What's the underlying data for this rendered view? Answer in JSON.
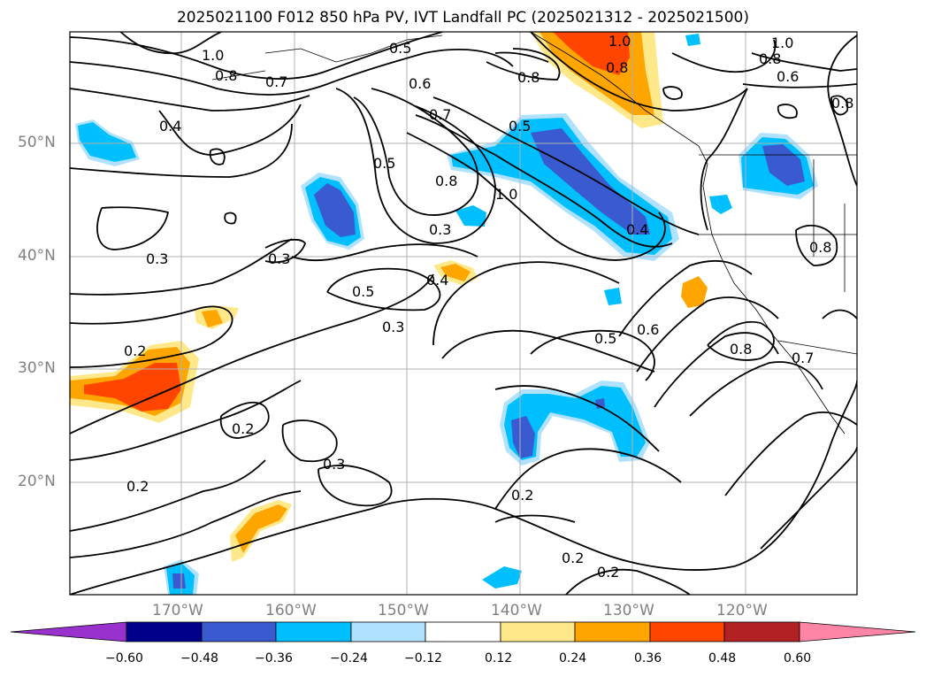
{
  "title": "2025021100 F012 850 hPa PV, IVT Landfall PC (2025021312 - 2025021500)",
  "lat_labels": [
    "50°N",
    "40°N",
    "30°N",
    "20°N"
  ],
  "lon_labels": [
    "170°W",
    "160°W",
    "150°W",
    "140°W",
    "130°W",
    "120°W"
  ],
  "contour_labels": [
    "1.0",
    "0.8",
    "0.7",
    "0.4",
    "0.5",
    "0.6",
    "0.7",
    "0.8",
    "1.0",
    "0.5",
    "0.5",
    "0.8",
    "1.0",
    "0.3",
    "0.3",
    "0.3",
    "0.4",
    "0.5",
    "0.3",
    "0.4",
    "0.5",
    "0.6",
    "0.8",
    "0.7",
    "0.2",
    "0.2",
    "0.3",
    "0.2",
    "0.2",
    "0.2",
    "0.2",
    "0.8",
    "1.0",
    "0.8",
    "0.6",
    "0.8",
    "0.8"
  ],
  "colorbar": {
    "ticks": [
      "−0.60",
      "−0.48",
      "−0.36",
      "−0.24",
      "−0.12",
      "0.12",
      "0.24",
      "0.36",
      "0.48",
      "0.60"
    ],
    "colors": [
      "#9932cc",
      "#00008b",
      "#3a5bd0",
      "#00bfff",
      "#b0e2ff",
      "#ffffff",
      "#ffe88a",
      "#ffa500",
      "#ff4500",
      "#b22222",
      "#ff85a6"
    ]
  },
  "colors": {
    "negative_strong": "#3a5bd0",
    "negative": "#00bfff",
    "negative_weak": "#b0e2ff",
    "positive_weak": "#ffe88a",
    "positive": "#ffa500",
    "positive_strong": "#ff4500"
  }
}
